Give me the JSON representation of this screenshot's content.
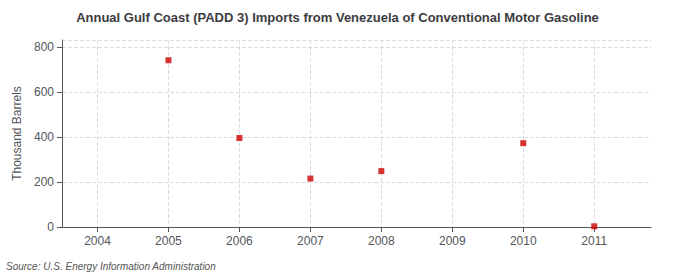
{
  "chart_data": {
    "type": "scatter",
    "title": "Annual Gulf Coast (PADD 3) Imports from Venezuela of Conventional Motor Gasoline",
    "ylabel": "Thousand Barrels",
    "source": "Source: U.S. Energy Information Administration",
    "x": [
      2004,
      2005,
      2006,
      2007,
      2008,
      2009,
      2010,
      2011
    ],
    "values": [
      null,
      740,
      395,
      215,
      248,
      null,
      372,
      3
    ],
    "xlim": [
      2003.5,
      2011.8
    ],
    "xticks": [
      2004,
      2005,
      2006,
      2007,
      2008,
      2009,
      2010,
      2011
    ],
    "ylim": [
      0,
      830
    ],
    "yticks": [
      0,
      200,
      400,
      600,
      800
    ],
    "color": "#cc0000",
    "marker": "square",
    "grid": true
  }
}
